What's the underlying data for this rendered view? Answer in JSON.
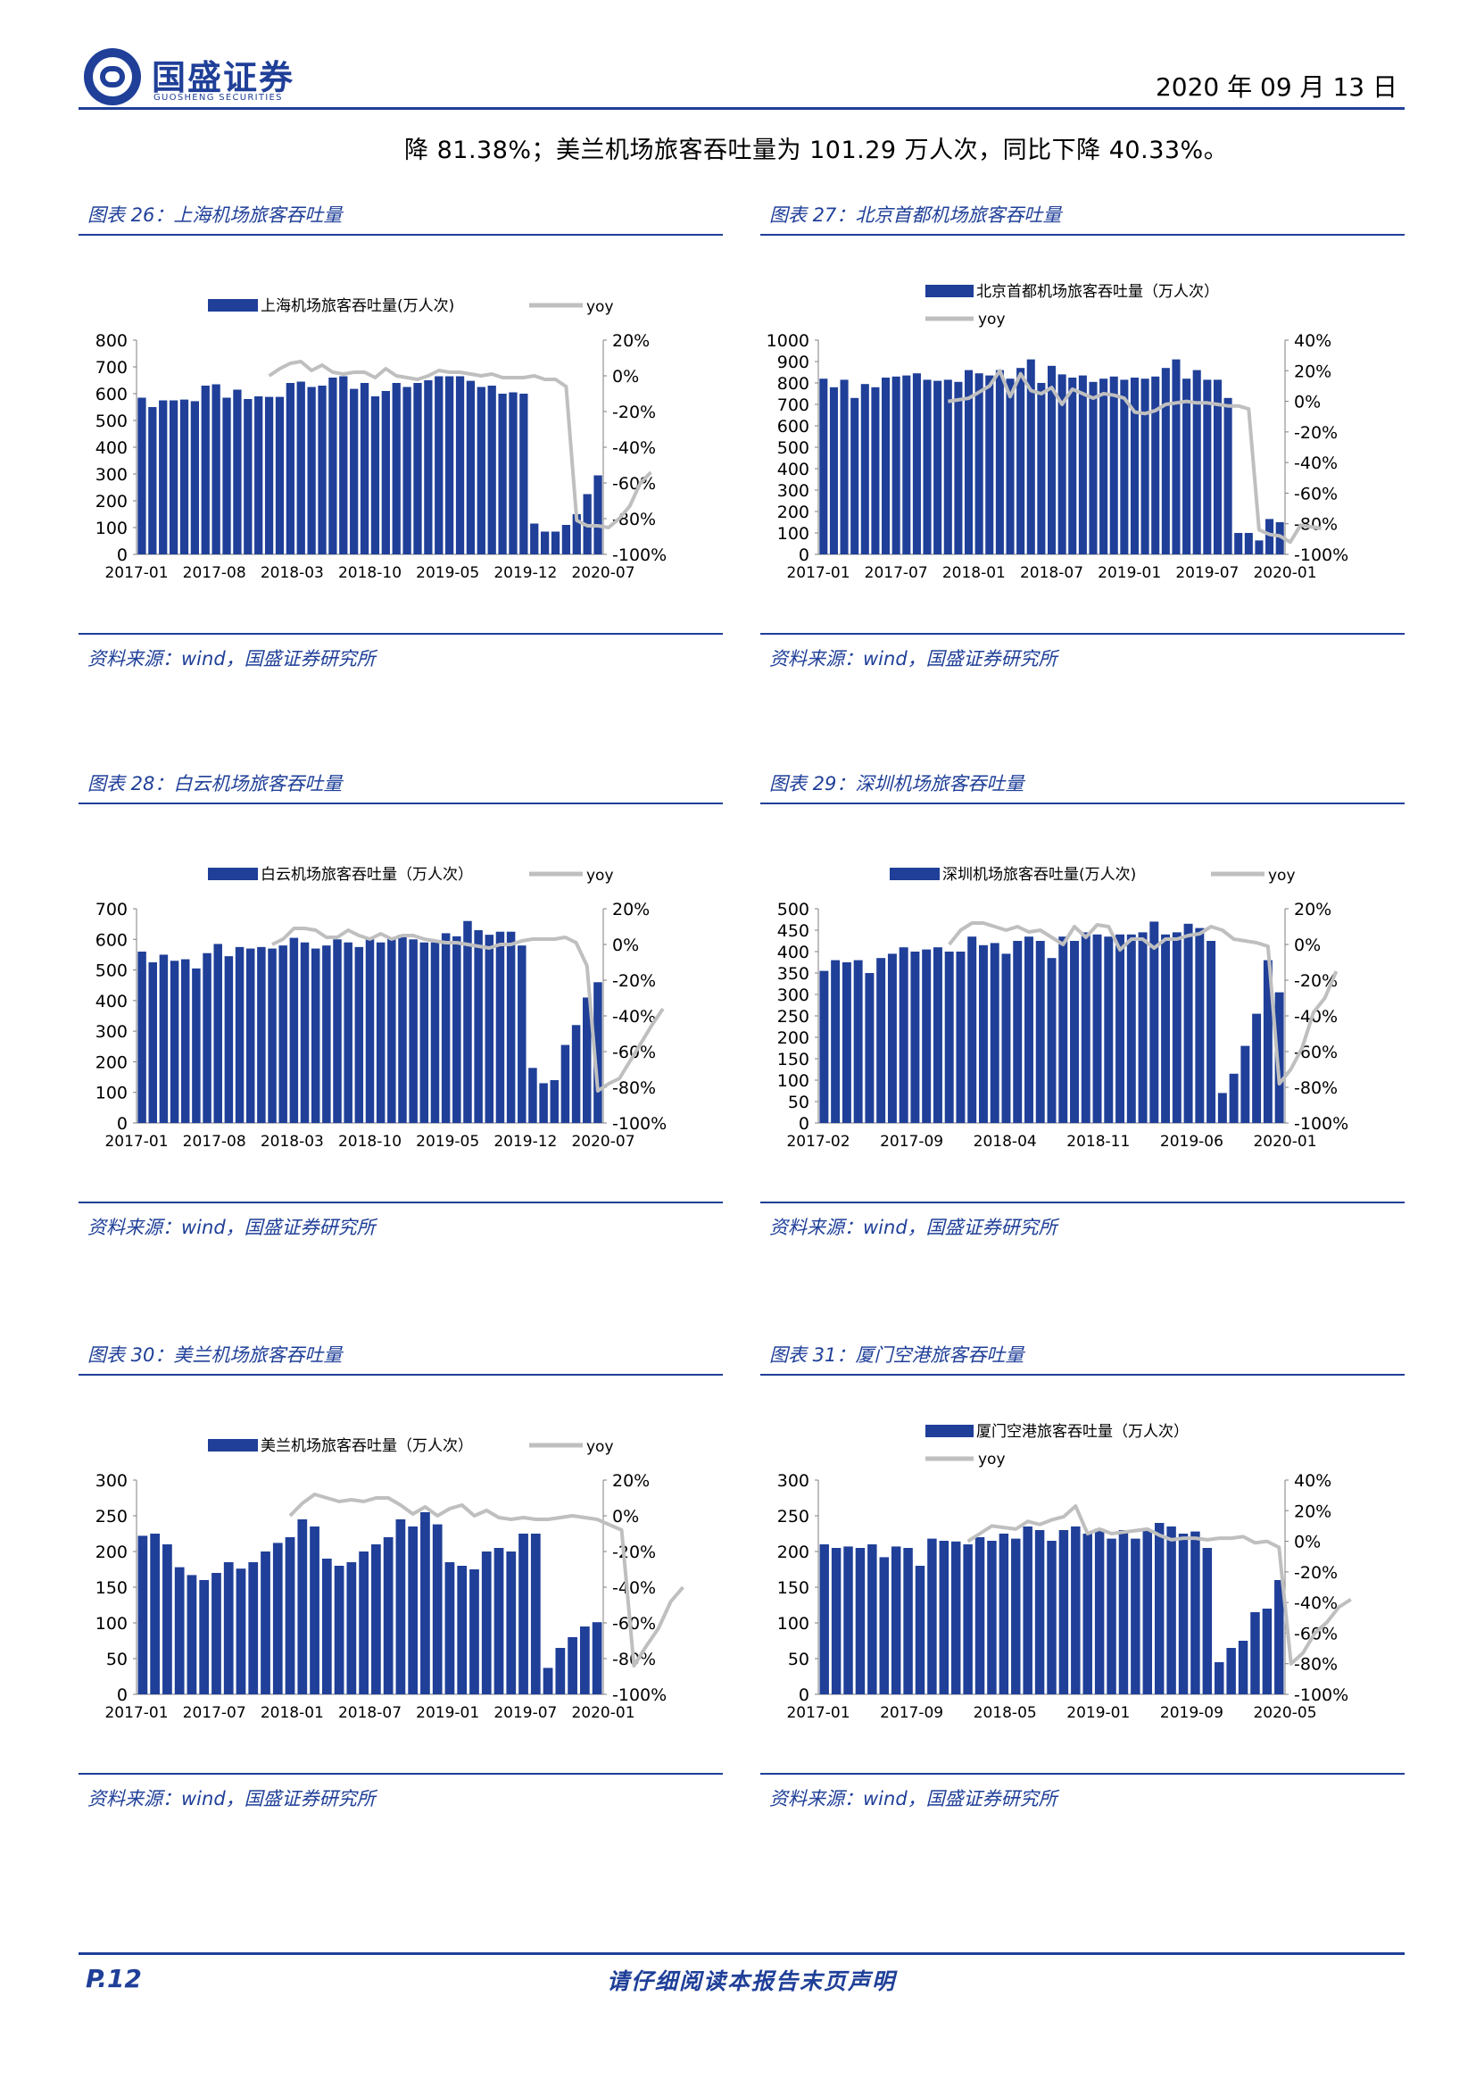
{
  "header": {
    "logo_cn": "国盛证券",
    "logo_en": "GUOSHENG SECURITIES",
    "date": "2020 年 09 月 13 日"
  },
  "lead_text": "降 81.38%；美兰机场旅客吞吐量为 101.29 万人次，同比下降 40.33%。",
  "colors": {
    "bar": "#1f3f98",
    "yoy": "#bfbfbf",
    "brand": "#1f3f98"
  },
  "panels": [
    {
      "title": "图表 26：上海机场旅客吞吐量",
      "source": "资料来源：wind，国盛证券研究所"
    },
    {
      "title": "图表 27：北京首都机场旅客吞吐量",
      "source": "资料来源：wind，国盛证券研究所"
    },
    {
      "title": "图表 28：白云机场旅客吞吐量",
      "source": "资料来源：wind，国盛证券研究所"
    },
    {
      "title": "图表 29：深圳机场旅客吞吐量",
      "source": "资料来源：wind，国盛证券研究所"
    },
    {
      "title": "图表 30：美兰机场旅客吞吐量",
      "source": "资料来源：wind，国盛证券研究所"
    },
    {
      "title": "图表 31：厦门空港旅客吞吐量",
      "source": "资料来源：wind，国盛证券研究所"
    }
  ],
  "chart_data": [
    {
      "type": "bar",
      "legend_layout": "one-row",
      "series": [
        {
          "name": "上海机场旅客吞吐量(万人次)",
          "type": "bar",
          "axis": "left",
          "values": [
            585,
            550,
            575,
            575,
            578,
            572,
            630,
            635,
            585,
            615,
            580,
            590,
            588,
            588,
            640,
            645,
            625,
            630,
            660,
            665,
            618,
            640,
            590,
            610,
            640,
            625,
            640,
            650,
            665,
            665,
            665,
            648,
            625,
            630,
            600,
            605,
            600,
            115,
            85,
            85,
            110,
            150,
            225,
            295
          ]
        },
        {
          "name": "yoy",
          "type": "line",
          "axis": "right",
          "start_index": 12,
          "values": [
            0,
            4,
            7,
            8,
            3,
            6,
            2,
            1,
            2,
            2,
            -1,
            4,
            0,
            -1,
            -2,
            0,
            3,
            2,
            2,
            1,
            0,
            1,
            -1,
            -1,
            -1,
            0,
            -2,
            -2,
            -6,
            -81,
            -84,
            -84,
            -85,
            -80,
            -73,
            -60,
            -54
          ]
        }
      ],
      "x_ticks": [
        "2017-01",
        "2017-08",
        "2018-03",
        "2018-10",
        "2019-05",
        "2019-12",
        "2020-07"
      ],
      "y_ticks_left": [
        "0",
        "100",
        "200",
        "300",
        "400",
        "500",
        "600",
        "700",
        "800"
      ],
      "y_ticks_right": [
        "-100%",
        "-80%",
        "-60%",
        "-40%",
        "-20%",
        "0%",
        "20%"
      ],
      "ylim_left": [
        0,
        800
      ],
      "ylim_right": [
        -100,
        20
      ]
    },
    {
      "type": "bar",
      "legend_layout": "stacked",
      "series": [
        {
          "name": "北京首都机场旅客吞吐量（万人次）",
          "type": "bar",
          "axis": "left",
          "values": [
            820,
            780,
            815,
            730,
            795,
            780,
            825,
            830,
            835,
            845,
            815,
            810,
            815,
            805,
            860,
            845,
            835,
            860,
            820,
            870,
            910,
            800,
            880,
            840,
            825,
            835,
            805,
            820,
            830,
            815,
            825,
            820,
            830,
            870,
            910,
            820,
            860,
            815,
            815,
            730,
            100,
            100,
            65,
            165,
            150
          ]
        },
        {
          "name": "yoy",
          "type": "line",
          "axis": "right",
          "start_index": 12,
          "values": [
            0,
            1,
            2,
            6,
            10,
            20,
            3,
            18,
            7,
            5,
            9,
            -2,
            8,
            5,
            2,
            5,
            4,
            2,
            -7,
            -8,
            -6,
            -2,
            -1,
            0,
            -1,
            -1,
            -2,
            -3,
            -3,
            -5,
            -84,
            -87,
            -88,
            -92,
            -81,
            -82,
            -83
          ]
        }
      ],
      "x_ticks": [
        "2017-01",
        "2017-07",
        "2018-01",
        "2018-07",
        "2019-01",
        "2019-07",
        "2020-01"
      ],
      "y_ticks_left": [
        "0",
        "100",
        "200",
        "300",
        "400",
        "500",
        "600",
        "700",
        "800",
        "900",
        "1000"
      ],
      "y_ticks_right": [
        "-100%",
        "-80%",
        "-60%",
        "-40%",
        "-20%",
        "0%",
        "20%",
        "40%"
      ],
      "ylim_left": [
        0,
        1000
      ],
      "ylim_right": [
        -100,
        40
      ]
    },
    {
      "type": "bar",
      "legend_layout": "one-row",
      "series": [
        {
          "name": "白云机场旅客吞吐量（万人次）",
          "type": "bar",
          "axis": "left",
          "values": [
            560,
            525,
            550,
            530,
            535,
            505,
            555,
            585,
            545,
            575,
            570,
            575,
            570,
            580,
            605,
            590,
            570,
            580,
            600,
            590,
            575,
            600,
            590,
            605,
            615,
            600,
            590,
            590,
            620,
            610,
            660,
            630,
            615,
            625,
            625,
            580,
            180,
            130,
            140,
            255,
            320,
            410,
            460
          ]
        },
        {
          "name": "yoy",
          "type": "line",
          "axis": "right",
          "start_index": 12,
          "values": [
            0,
            3,
            9,
            9,
            8,
            4,
            4,
            8,
            5,
            3,
            6,
            3,
            5,
            5,
            3,
            2,
            1,
            1,
            0,
            -1,
            -2,
            0,
            0,
            2,
            3,
            3,
            3,
            4,
            1,
            -12,
            -82,
            -78,
            -75,
            -65,
            -55,
            -45,
            -36
          ]
        }
      ],
      "x_ticks": [
        "2017-01",
        "2017-08",
        "2018-03",
        "2018-10",
        "2019-05",
        "2019-12",
        "2020-07"
      ],
      "y_ticks_left": [
        "0",
        "100",
        "200",
        "300",
        "400",
        "500",
        "600",
        "700"
      ],
      "y_ticks_right": [
        "-100%",
        "-80%",
        "-60%",
        "-40%",
        "-20%",
        "0%",
        "20%"
      ],
      "ylim_left": [
        0,
        700
      ],
      "ylim_right": [
        -100,
        20
      ]
    },
    {
      "type": "bar",
      "legend_layout": "one-row",
      "series": [
        {
          "name": "深圳机场旅客吞吐量(万人次)",
          "type": "bar",
          "axis": "left",
          "values": [
            355,
            380,
            375,
            380,
            350,
            385,
            395,
            410,
            400,
            405,
            410,
            400,
            400,
            435,
            415,
            420,
            395,
            425,
            435,
            425,
            385,
            435,
            425,
            445,
            440,
            435,
            440,
            440,
            445,
            470,
            440,
            445,
            465,
            455,
            425,
            70,
            115,
            180,
            255,
            380,
            305
          ]
        },
        {
          "name": "yoy",
          "type": "line",
          "axis": "right",
          "start_index": 11,
          "values": [
            0,
            8,
            12,
            12,
            10,
            8,
            10,
            7,
            8,
            4,
            0,
            10,
            4,
            11,
            10,
            -3,
            3,
            3,
            -2,
            3,
            3,
            5,
            6,
            10,
            8,
            3,
            2,
            1,
            -1,
            -78,
            -70,
            -58,
            -38,
            -30,
            -15
          ]
        }
      ],
      "x_ticks": [
        "2017-02",
        "2017-09",
        "2018-04",
        "2018-11",
        "2019-06",
        "2020-01"
      ],
      "y_ticks_left": [
        "0",
        "50",
        "100",
        "150",
        "200",
        "250",
        "300",
        "350",
        "400",
        "450",
        "500"
      ],
      "y_ticks_right": [
        "-100%",
        "-80%",
        "-60%",
        "-40%",
        "-20%",
        "0%",
        "20%"
      ],
      "ylim_left": [
        0,
        500
      ],
      "ylim_right": [
        -100,
        20
      ]
    },
    {
      "type": "bar",
      "legend_layout": "one-row",
      "series": [
        {
          "name": "美兰机场旅客吞吐量（万人次）",
          "type": "bar",
          "axis": "left",
          "values": [
            222,
            225,
            210,
            178,
            167,
            160,
            170,
            185,
            176,
            185,
            200,
            212,
            220,
            245,
            235,
            190,
            180,
            185,
            200,
            210,
            220,
            245,
            235,
            255,
            238,
            185,
            180,
            175,
            200,
            205,
            200,
            225,
            225,
            37,
            65,
            80,
            95,
            101
          ]
        },
        {
          "name": "yoy",
          "type": "line",
          "axis": "right",
          "start_index": 12,
          "values": [
            0,
            7,
            12,
            10,
            8,
            9,
            8,
            10,
            10,
            6,
            1,
            5,
            0,
            4,
            6,
            0,
            3,
            -1,
            -2,
            -1,
            -2,
            -2,
            -1,
            0,
            -1,
            -2,
            -5,
            -8,
            -84,
            -73,
            -63,
            -48,
            -40
          ]
        }
      ],
      "x_ticks": [
        "2017-01",
        "2017-07",
        "2018-01",
        "2018-07",
        "2019-01",
        "2019-07",
        "2020-01"
      ],
      "y_ticks_left": [
        "0",
        "50",
        "100",
        "150",
        "200",
        "250",
        "300"
      ],
      "y_ticks_right": [
        "-100%",
        "-80%",
        "-60%",
        "-40%",
        "-20%",
        "0%",
        "20%"
      ],
      "ylim_left": [
        0,
        300
      ],
      "ylim_right": [
        -100,
        20
      ]
    },
    {
      "type": "bar",
      "legend_layout": "stacked",
      "series": [
        {
          "name": "厦门空港旅客吞吐量（万人次）",
          "type": "bar",
          "axis": "left",
          "values": [
            210,
            205,
            207,
            205,
            210,
            192,
            207,
            205,
            180,
            218,
            215,
            214,
            210,
            220,
            215,
            225,
            218,
            235,
            230,
            215,
            230,
            235,
            225,
            232,
            218,
            230,
            218,
            230,
            240,
            235,
            225,
            228,
            205,
            45,
            65,
            75,
            115,
            120,
            160
          ]
        },
        {
          "name": "yoy",
          "type": "line",
          "axis": "right",
          "start_index": 12,
          "values": [
            0,
            5,
            10,
            9,
            8,
            13,
            11,
            14,
            16,
            23,
            5,
            8,
            5,
            6,
            7,
            8,
            4,
            1,
            2,
            2,
            1,
            2,
            2,
            3,
            -1,
            0,
            -4,
            -80,
            -73,
            -60,
            -53,
            -43,
            -38
          ]
        }
      ],
      "x_ticks": [
        "2017-01",
        "2017-09",
        "2018-05",
        "2019-01",
        "2019-09",
        "2020-05"
      ],
      "y_ticks_left": [
        "0",
        "50",
        "100",
        "150",
        "200",
        "250",
        "300"
      ],
      "y_ticks_right": [
        "-100%",
        "-80%",
        "-60%",
        "-40%",
        "-20%",
        "0%",
        "20%",
        "40%"
      ],
      "ylim_left": [
        0,
        300
      ],
      "ylim_right": [
        -100,
        40
      ]
    }
  ],
  "footer": {
    "page": "P.12",
    "notice": "请仔细阅读本报告末页声明"
  }
}
